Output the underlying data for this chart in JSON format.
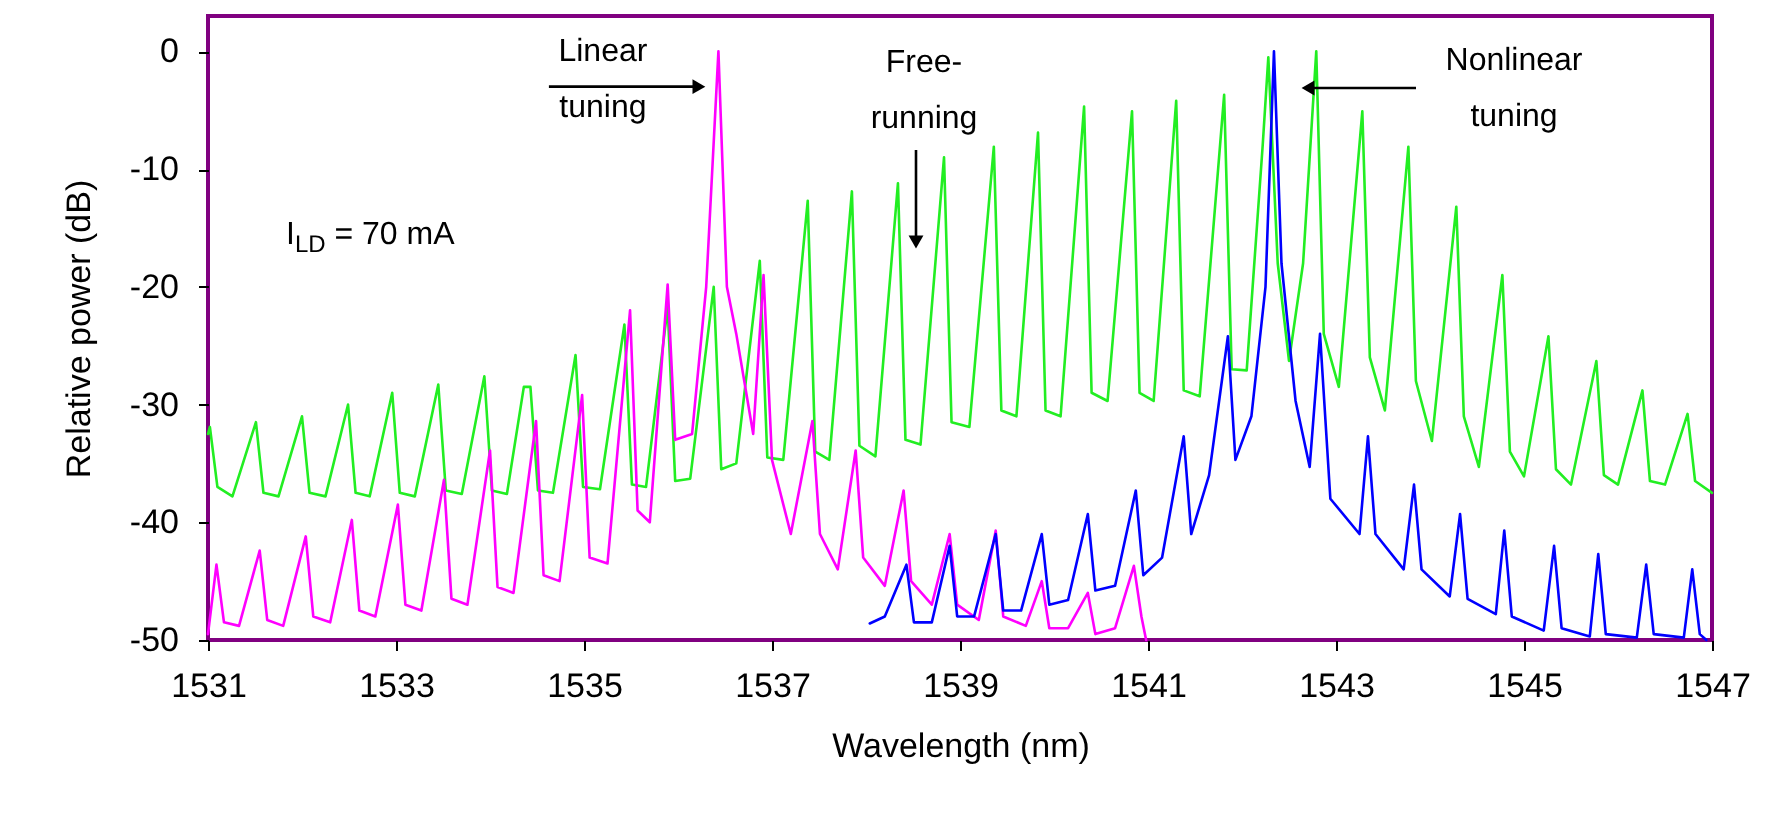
{
  "chart_data": {
    "type": "line",
    "xlabel": "Wavelength (nm)",
    "ylabel": "Relative power (dB)",
    "xlim": [
      1531,
      1547
    ],
    "ylim": [
      -50,
      3
    ],
    "xticks": [
      1531,
      1533,
      1535,
      1537,
      1539,
      1541,
      1543,
      1545,
      1547
    ],
    "yticks": [
      -50,
      -40,
      -30,
      -20,
      -10,
      0
    ],
    "series": [
      {
        "color": "#22ee22",
        "x": [
          1531.0,
          1531.02,
          1531.1,
          1531.26,
          1531.51,
          1531.59,
          1531.75,
          1532.0,
          1532.08,
          1532.25,
          1532.49,
          1532.57,
          1532.72,
          1532.96,
          1533.04,
          1533.2,
          1533.45,
          1533.53,
          1533.7,
          1533.94,
          1534.02,
          1534.18,
          1534.36,
          1534.43,
          1534.51,
          1534.67,
          1534.91,
          1534.99,
          1535.17,
          1535.43,
          1535.51,
          1535.66,
          1535.89,
          1535.97,
          1536.13,
          1536.38,
          1536.46,
          1536.62,
          1536.87,
          1536.95,
          1537.12,
          1537.38,
          1537.46,
          1537.61,
          1537.85,
          1537.93,
          1538.1,
          1538.34,
          1538.42,
          1538.58,
          1538.83,
          1538.91,
          1539.1,
          1539.36,
          1539.44,
          1539.6,
          1539.83,
          1539.91,
          1540.07,
          1540.32,
          1540.4,
          1540.57,
          1540.83,
          1540.91,
          1541.06,
          1541.3,
          1541.38,
          1541.55,
          1541.81,
          1541.89,
          1542.05,
          1542.22,
          1542.28,
          1542.38,
          1542.5,
          1542.65,
          1542.79,
          1542.87,
          1543.03,
          1543.28,
          1543.36,
          1543.52,
          1543.77,
          1543.85,
          1544.02,
          1544.28,
          1544.36,
          1544.52,
          1544.77,
          1544.85,
          1545.0,
          1545.26,
          1545.34,
          1545.5,
          1545.77,
          1545.85,
          1546.0,
          1546.26,
          1546.34,
          1546.5,
          1546.74,
          1546.82,
          1547.0
        ],
        "values": [
          -32.5,
          -31.9,
          -37,
          -37.8,
          -31.5,
          -37.5,
          -37.8,
          -31,
          -37.5,
          -37.8,
          -30,
          -37.5,
          -37.8,
          -29,
          -37.5,
          -37.8,
          -28.3,
          -37.3,
          -37.6,
          -27.6,
          -37.3,
          -37.6,
          -28.5,
          -28.5,
          -37.3,
          -37.5,
          -25.8,
          -37,
          -37.2,
          -23.2,
          -36.8,
          -37,
          -21.7,
          -36.5,
          -36.3,
          -20,
          -35.5,
          -35,
          -17.8,
          -34.5,
          -34.7,
          -12.7,
          -34,
          -34.7,
          -11.9,
          -33.5,
          -34.4,
          -11.2,
          -33,
          -33.4,
          -9,
          -31.5,
          -31.9,
          -8.1,
          -30.5,
          -31,
          -6.9,
          -30.5,
          -31,
          -4.7,
          -29,
          -29.7,
          -5.1,
          -29,
          -29.7,
          -4.2,
          -28.8,
          -29.3,
          -3.7,
          -27,
          -27.1,
          -8,
          -0.5,
          -18,
          -26.3,
          -18,
          0,
          -24,
          -28.5,
          -5.1,
          -26,
          -30.5,
          -8.1,
          -28,
          -33.1,
          -13.2,
          -31,
          -35.3,
          -19,
          -34,
          -36.1,
          -24.2,
          -35.5,
          -36.8,
          -26.3,
          -36,
          -36.8,
          -28.8,
          -36.5,
          -36.8,
          -30.8,
          -36.5,
          -37.5
        ]
      },
      {
        "color": "#ff00ff",
        "x": [
          1531.0,
          1531.09,
          1531.17,
          1531.33,
          1531.55,
          1531.63,
          1531.8,
          1532.04,
          1532.12,
          1532.3,
          1532.53,
          1532.61,
          1532.78,
          1533.02,
          1533.1,
          1533.27,
          1533.51,
          1533.59,
          1533.76,
          1534.0,
          1534.08,
          1534.25,
          1534.49,
          1534.57,
          1534.74,
          1534.98,
          1535.06,
          1535.25,
          1535.49,
          1535.57,
          1535.7,
          1535.89,
          1535.97,
          1536.15,
          1536.3,
          1536.43,
          1536.52,
          1536.62,
          1536.8,
          1536.91,
          1537.0,
          1537.2,
          1537.43,
          1537.51,
          1537.7,
          1537.89,
          1537.97,
          1538.2,
          1538.4,
          1538.48,
          1538.7,
          1538.89,
          1538.97,
          1539.2,
          1539.38,
          1539.46,
          1539.7,
          1539.87,
          1539.95,
          1540.15,
          1540.36,
          1540.44,
          1540.65,
          1540.85,
          1540.93,
          1540.98
        ],
        "values": [
          -49.5,
          -43.6,
          -48.5,
          -48.8,
          -42.4,
          -48.3,
          -48.8,
          -41.2,
          -48,
          -48.5,
          -39.8,
          -47.5,
          -48,
          -38.5,
          -47,
          -47.5,
          -36.4,
          -46.5,
          -47,
          -33.9,
          -45.5,
          -46,
          -31.4,
          -44.5,
          -45,
          -29.2,
          -43,
          -43.5,
          -22,
          -39,
          -40,
          -19.8,
          -33,
          -32.5,
          -20,
          0,
          -20,
          -24,
          -32.5,
          -19,
          -34.7,
          -41,
          -31.4,
          -41,
          -44,
          -33.9,
          -43,
          -45.4,
          -37.3,
          -45,
          -47,
          -41,
          -47,
          -48.3,
          -40.7,
          -48,
          -48.8,
          -45,
          -49,
          -49,
          -46,
          -49.5,
          -49,
          -43.7,
          -48,
          -50
        ]
      },
      {
        "color": "#0000ff",
        "x": [
          1538.04,
          1538.2,
          1538.43,
          1538.51,
          1538.7,
          1538.89,
          1538.97,
          1539.15,
          1539.38,
          1539.46,
          1539.65,
          1539.87,
          1539.95,
          1540.15,
          1540.36,
          1540.44,
          1540.65,
          1540.87,
          1540.95,
          1541.15,
          1541.38,
          1541.46,
          1541.65,
          1541.85,
          1541.93,
          1542.1,
          1542.25,
          1542.34,
          1542.42,
          1542.57,
          1542.72,
          1542.83,
          1542.94,
          1543.25,
          1543.34,
          1543.42,
          1543.72,
          1543.83,
          1543.91,
          1544.21,
          1544.32,
          1544.4,
          1544.7,
          1544.79,
          1544.87,
          1545.21,
          1545.32,
          1545.4,
          1545.7,
          1545.79,
          1545.87,
          1546.2,
          1546.3,
          1546.38,
          1546.7,
          1546.79,
          1546.87,
          1546.94
        ],
        "values": [
          -48.6,
          -48,
          -43.6,
          -48.5,
          -48.5,
          -42,
          -48,
          -48,
          -41,
          -47.5,
          -47.5,
          -41,
          -47,
          -46.6,
          -39.3,
          -45.8,
          -45.4,
          -37.3,
          -44.5,
          -43,
          -32.7,
          -41,
          -36,
          -24.2,
          -34.7,
          -31,
          -20,
          0,
          -18,
          -29.7,
          -35.3,
          -24,
          -38,
          -41,
          -32.7,
          -41,
          -44,
          -36.8,
          -44,
          -46.3,
          -39.3,
          -46.5,
          -47.8,
          -40.7,
          -48,
          -49.2,
          -42,
          -49,
          -49.7,
          -42.7,
          -49.5,
          -49.8,
          -43.6,
          -49.5,
          -49.8,
          -44,
          -49.5,
          -50
        ]
      }
    ],
    "annotations": [
      {
        "text": "Linear tuning",
        "x": 1536.35,
        "y": -3
      },
      "Free-running",
      "Nonlinear tuning",
      "I$_{LD}$ = 70 mA"
    ]
  }
}
